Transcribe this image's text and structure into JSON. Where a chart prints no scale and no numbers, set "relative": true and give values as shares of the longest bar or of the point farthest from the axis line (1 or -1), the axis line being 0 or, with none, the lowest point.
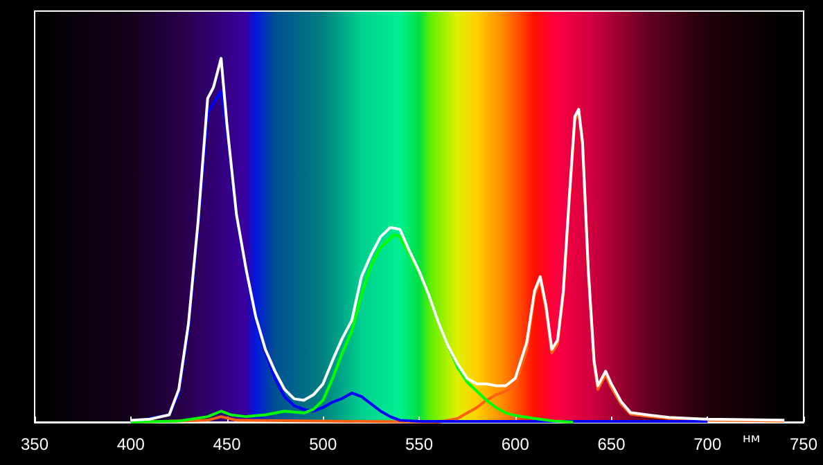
{
  "chart_data": {
    "type": "line",
    "relative": true,
    "xlabel": "нм",
    "xlim": [
      350,
      750
    ],
    "xticks": [
      350,
      400,
      450,
      500,
      550,
      600,
      650,
      700,
      750
    ],
    "marker": "none",
    "series": [
      {
        "color": "#ff6010",
        "x": [
          400,
          440,
          447,
          455,
          560,
          570,
          575,
          580,
          585,
          590,
          595,
          600,
          603,
          606,
          610,
          613,
          616,
          619,
          622,
          625,
          628,
          631,
          633,
          635,
          638,
          641,
          643,
          647,
          650,
          655,
          660,
          670,
          680,
          700,
          740
        ],
        "values": [
          0,
          0.005,
          0.015,
          0.005,
          0,
          0.01,
          0.025,
          0.04,
          0.06,
          0.075,
          0.085,
          0.1,
          0.15,
          0.2,
          0.35,
          0.39,
          0.31,
          0.19,
          0.215,
          0.35,
          0.6,
          0.83,
          0.85,
          0.76,
          0.41,
          0.16,
          0.09,
          0.13,
          0.095,
          0.05,
          0.022,
          0.015,
          0.01,
          0.005,
          0.003
        ]
      },
      {
        "color": "#0000ff",
        "x": [
          400,
          420,
          425,
          430,
          435,
          440,
          447,
          450,
          455,
          460,
          465,
          470,
          475,
          480,
          485,
          490,
          495,
          500,
          505,
          510,
          515,
          520,
          525,
          530,
          535,
          540,
          550,
          600,
          650,
          700
        ],
        "values": [
          0,
          0.02,
          0.08,
          0.26,
          0.54,
          0.85,
          0.91,
          0.8,
          0.56,
          0.41,
          0.28,
          0.19,
          0.12,
          0.07,
          0.045,
          0.035,
          0.03,
          0.04,
          0.055,
          0.065,
          0.08,
          0.07,
          0.05,
          0.03,
          0.015,
          0.005,
          0.002,
          0.002,
          0.002,
          0.002
        ]
      },
      {
        "color": "#00ff00",
        "x": [
          400,
          425,
          440,
          447,
          452,
          460,
          470,
          480,
          490,
          495,
          500,
          505,
          510,
          515,
          520,
          525,
          530,
          537,
          540,
          545,
          550,
          555,
          560,
          565,
          570,
          575,
          580,
          585,
          590,
          595,
          600,
          610,
          620,
          630
        ],
        "values": [
          0,
          0.003,
          0.015,
          0.03,
          0.02,
          0.015,
          0.02,
          0.03,
          0.025,
          0.035,
          0.06,
          0.12,
          0.19,
          0.25,
          0.35,
          0.43,
          0.48,
          0.515,
          0.51,
          0.46,
          0.41,
          0.35,
          0.275,
          0.21,
          0.15,
          0.11,
          0.085,
          0.06,
          0.04,
          0.025,
          0.018,
          0.01,
          0.003,
          0
        ]
      },
      {
        "color": "#ffffff",
        "x": [
          400,
          410,
          420,
          425,
          430,
          435,
          440,
          443,
          447,
          450,
          455,
          460,
          465,
          470,
          475,
          480,
          485,
          490,
          495,
          500,
          505,
          510,
          515,
          520,
          525,
          530,
          535,
          540,
          545,
          550,
          555,
          560,
          565,
          570,
          575,
          580,
          585,
          590,
          595,
          600,
          603,
          606,
          610,
          613,
          616,
          619,
          622,
          625,
          628,
          631,
          633,
          635,
          638,
          641,
          643,
          647,
          650,
          655,
          660,
          670,
          680,
          700,
          740
        ],
        "values": [
          0.005,
          0.008,
          0.02,
          0.09,
          0.27,
          0.55,
          0.89,
          0.92,
          1,
          0.82,
          0.57,
          0.42,
          0.29,
          0.2,
          0.14,
          0.09,
          0.064,
          0.06,
          0.075,
          0.105,
          0.17,
          0.23,
          0.28,
          0.4,
          0.46,
          0.51,
          0.535,
          0.53,
          0.47,
          0.415,
          0.35,
          0.275,
          0.21,
          0.16,
          0.12,
          0.105,
          0.105,
          0.1,
          0.1,
          0.12,
          0.17,
          0.22,
          0.36,
          0.4,
          0.32,
          0.2,
          0.225,
          0.36,
          0.61,
          0.84,
          0.86,
          0.77,
          0.42,
          0.17,
          0.1,
          0.14,
          0.105,
          0.057,
          0.026,
          0.019,
          0.013,
          0.008,
          0.005
        ]
      }
    ]
  }
}
